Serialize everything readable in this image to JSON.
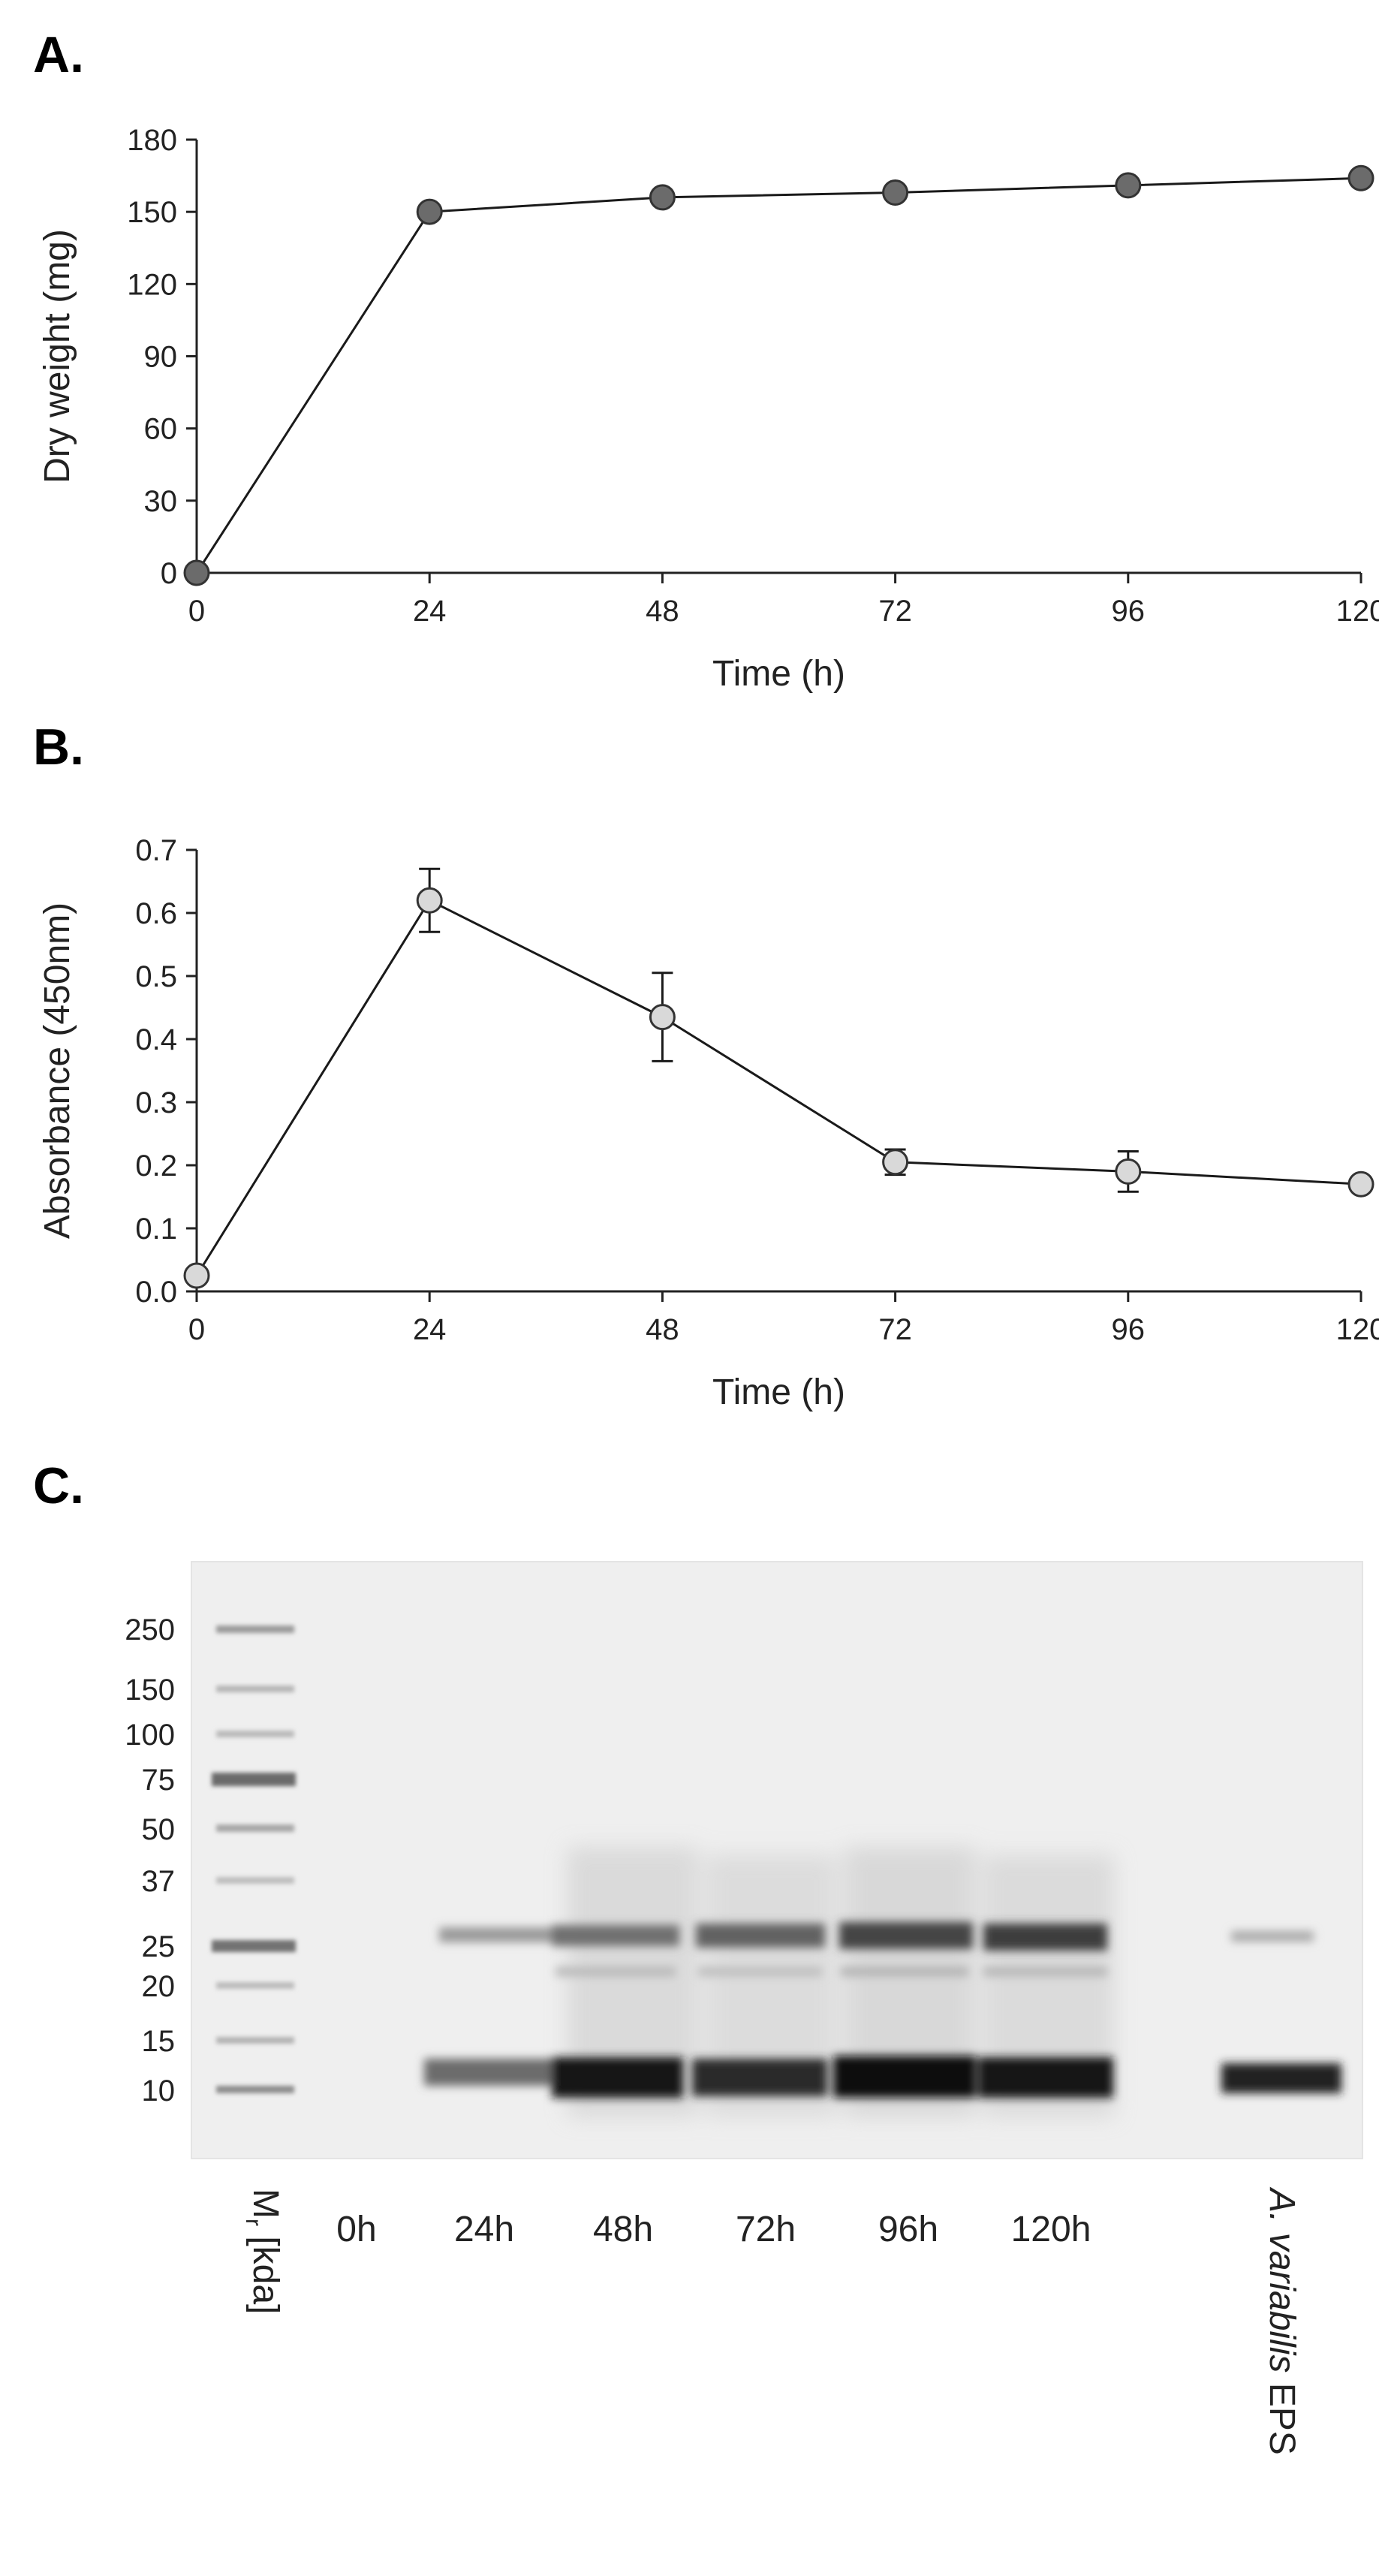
{
  "chart_data": [
    {
      "panel": "A.",
      "type": "line",
      "xlabel": "Time (h)",
      "ylabel": "Dry weight (mg)",
      "xlim": [
        0,
        120
      ],
      "ylim": [
        0,
        180
      ],
      "xticks": [
        0,
        24,
        48,
        72,
        96,
        120
      ],
      "yticks": [
        0,
        30,
        60,
        90,
        120,
        150,
        180
      ],
      "grid": false,
      "marker_color": "#6b6b6b",
      "series": [
        {
          "x": [
            0,
            24,
            48,
            72,
            96,
            120
          ],
          "y": [
            0,
            150,
            156,
            158,
            161,
            164
          ]
        }
      ]
    },
    {
      "panel": "B.",
      "type": "line",
      "xlabel": "Time (h)",
      "ylabel": "Absorbance (450nm)",
      "xlim": [
        0,
        120
      ],
      "ylim": [
        0,
        0.7
      ],
      "xticks": [
        0,
        24,
        48,
        72,
        96,
        120
      ],
      "yticks": [
        "0.0",
        "0.1",
        "0.2",
        "0.3",
        "0.4",
        "0.5",
        "0.6",
        "0.7"
      ],
      "grid": false,
      "marker_color": "#d9d9d9",
      "series": [
        {
          "x": [
            0,
            24,
            48,
            72,
            96,
            120
          ],
          "y": [
            0.025,
            0.62,
            0.435,
            0.205,
            0.19,
            0.17
          ],
          "error": [
            0,
            0.05,
            0.07,
            0.02,
            0.032,
            0
          ]
        }
      ]
    }
  ],
  "gel": {
    "panel": "C.",
    "marker_axis_label": "M",
    "marker_axis_sub": "r",
    "marker_axis_unit": " [kda]",
    "marker_sizes": [
      "250",
      "150",
      "100",
      "75",
      "50",
      "37",
      "25",
      "20",
      "15",
      "10"
    ],
    "lanes": [
      "0h",
      "24h",
      "48h",
      "72h",
      "96h",
      "120h"
    ],
    "last_lane_italic": "A. variabilis",
    "last_lane_rest": " EPS"
  }
}
